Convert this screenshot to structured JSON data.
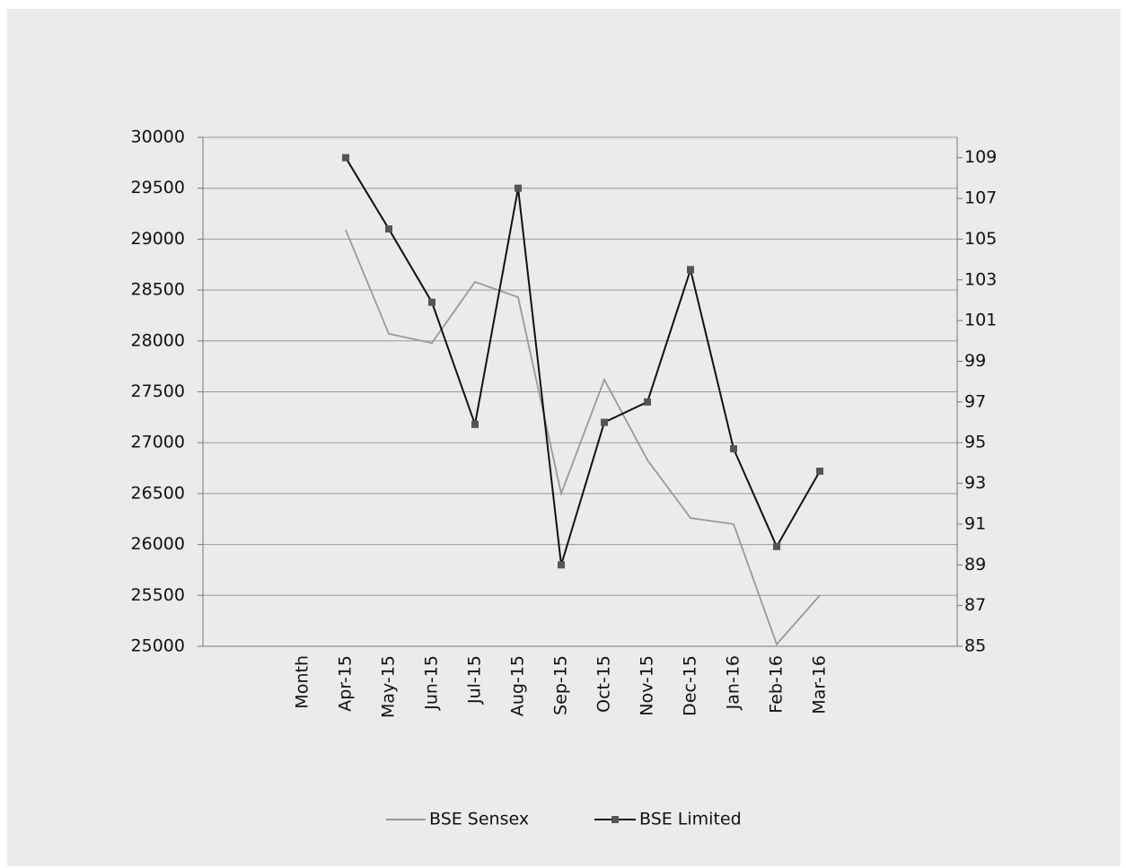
{
  "chart_data": {
    "type": "line",
    "categories": [
      "Month",
      "Apr-15",
      "May-15",
      "Jun-15",
      "Jul-15",
      "Aug-15",
      "Sep-15",
      "Oct-15",
      "Nov-15",
      "Dec-15",
      "Jan-16",
      "Feb-16",
      "Mar-16"
    ],
    "series": [
      {
        "name": "BSE Sensex",
        "color": "#999999",
        "marker": false,
        "values": [
          null,
          29090,
          28070,
          27980,
          28580,
          28430,
          26500,
          27620,
          26830,
          26260,
          26200,
          25020,
          25500
        ]
      },
      {
        "name": "BSE Limited",
        "color": "#111111",
        "marker": true,
        "axis": "y2",
        "values": [
          null,
          109.0,
          105.5,
          101.9,
          95.9,
          107.5,
          89.0,
          96.0,
          97.0,
          103.5,
          94.7,
          89.9,
          93.6
        ]
      }
    ],
    "ylim": [
      25000,
      30000
    ],
    "yticks": [
      25000,
      25500,
      26000,
      26500,
      27000,
      27500,
      28000,
      28500,
      29000,
      29500,
      30000
    ],
    "y2lim": [
      85,
      110
    ],
    "y2ticks": [
      85,
      87,
      89,
      91,
      93,
      95,
      97,
      99,
      101,
      103,
      105,
      107,
      109
    ],
    "grid": true,
    "legend": "bottom"
  }
}
